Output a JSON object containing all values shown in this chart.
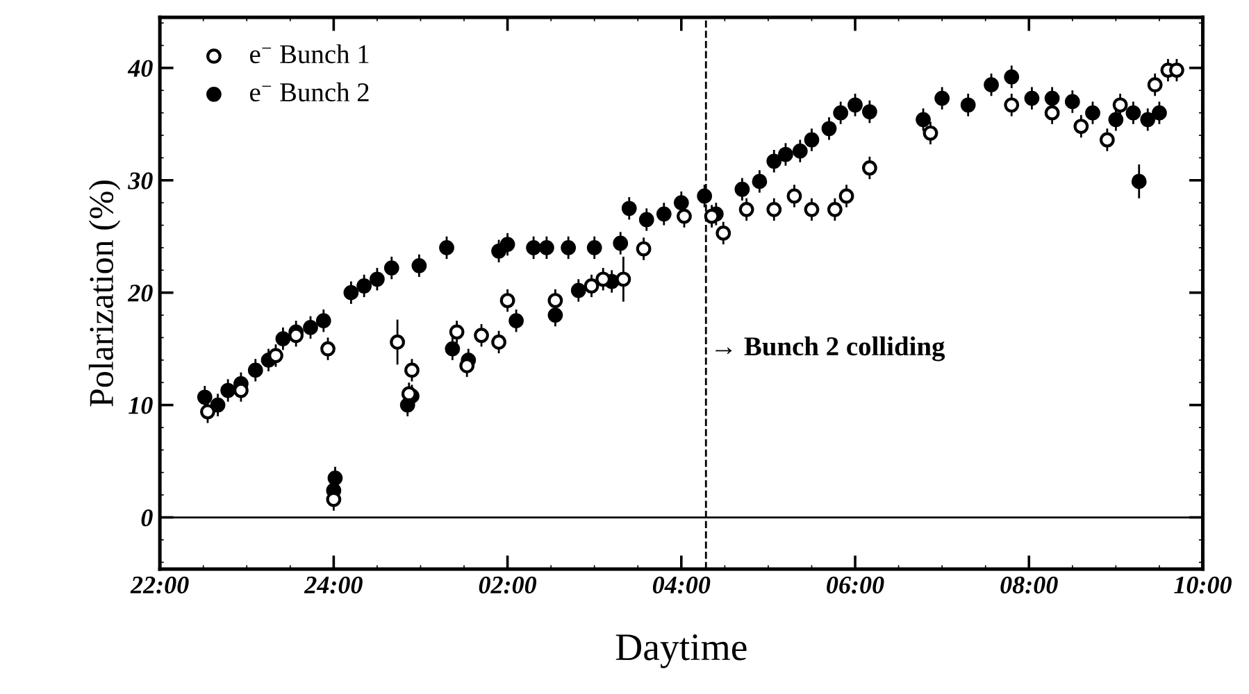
{
  "chart_data": {
    "type": "scatter",
    "xlabel": "Daytime",
    "ylabel": "Polarization (%)",
    "xlim": [
      "2000-01-01T22:00",
      "2000-01-02T10:00"
    ],
    "ylim": [
      -4.6,
      44.5
    ],
    "xticks": [
      {
        "value": "2000-01-01T22:00",
        "label": "22:00"
      },
      {
        "value": "2000-01-02T00:00",
        "label": "24:00"
      },
      {
        "value": "2000-01-02T02:00",
        "label": "02:00"
      },
      {
        "value": "2000-01-02T04:00",
        "label": "04:00"
      },
      {
        "value": "2000-01-02T06:00",
        "label": "06:00"
      },
      {
        "value": "2000-01-02T08:00",
        "label": "08:00"
      },
      {
        "value": "2000-01-02T10:00",
        "label": "10:00"
      }
    ],
    "yticks": [
      0,
      10,
      20,
      30,
      40
    ],
    "marker": "circle",
    "legend": "top left",
    "grid": false,
    "ref_lines": [
      {
        "axis": "x",
        "value": "2000-01-02T04:17",
        "label": "→ Bunch 2 colliding",
        "line_style": "dashed",
        "color": "#000000"
      },
      {
        "axis": "y",
        "value": 0,
        "label": null,
        "line_style": "solid",
        "color": "#000000"
      }
    ],
    "series": [
      {
        "name": "e$^{−}$ Bunch 1",
        "color": "#000000",
        "x": [
          "2000-01-01T22:33",
          "2000-01-01T22:56",
          "2000-01-01T23:20",
          "2000-01-01T23:34",
          "2000-01-01T23:56",
          "2000-01-02T00:00",
          "2000-01-02T00:44",
          "2000-01-02T00:54",
          "2000-01-02T00:52",
          "2000-01-02T01:25",
          "2000-01-02T01:32",
          "2000-01-02T01:42",
          "2000-01-02T01:54",
          "2000-01-02T02:00",
          "2000-01-02T02:33",
          "2000-01-02T02:58",
          "2000-01-02T03:06",
          "2000-01-02T03:20",
          "2000-01-02T03:34",
          "2000-01-02T04:02",
          "2000-01-02T04:21",
          "2000-01-02T04:29",
          "2000-01-02T04:45",
          "2000-01-02T05:04",
          "2000-01-02T05:18",
          "2000-01-02T05:30",
          "2000-01-02T05:46",
          "2000-01-02T05:54",
          "2000-01-02T06:10",
          "2000-01-02T06:52",
          "2000-01-02T07:48",
          "2000-01-02T08:16",
          "2000-01-02T08:36",
          "2000-01-02T08:54",
          "2000-01-02T09:03",
          "2000-01-02T09:27",
          "2000-01-02T09:36",
          "2000-01-02T09:42"
        ],
        "values": [
          9.4,
          11.3,
          14.4,
          16.2,
          15.0,
          1.6,
          15.6,
          13.1,
          11.0,
          16.5,
          13.5,
          16.2,
          15.6,
          19.3,
          19.3,
          20.6,
          21.2,
          21.2,
          23.9,
          26.8,
          26.8,
          25.3,
          27.4,
          27.4,
          28.6,
          27.4,
          27.4,
          28.6,
          31.1,
          34.2,
          36.7,
          36.0,
          34.8,
          33.6,
          36.7,
          38.5,
          39.8,
          39.8
        ],
        "errors": [
          1,
          1,
          1,
          1,
          1,
          1,
          2,
          1,
          1,
          1,
          1,
          1,
          1,
          1,
          1,
          1,
          1,
          2,
          1,
          1,
          1,
          1,
          1,
          1,
          1,
          1,
          1,
          1,
          1,
          1,
          1,
          1,
          1,
          1,
          1,
          1,
          1,
          1
        ]
      },
      {
        "name": "e$^{−}$ Bunch 2",
        "color": "#000000",
        "x": [
          "2000-01-01T22:31",
          "2000-01-01T22:40",
          "2000-01-01T22:47",
          "2000-01-01T22:56",
          "2000-01-01T23:06",
          "2000-01-01T23:15",
          "2000-01-01T23:25",
          "2000-01-01T23:34",
          "2000-01-01T23:44",
          "2000-01-01T23:53",
          "2000-01-02T00:00",
          "2000-01-02T00:01",
          "2000-01-02T00:12",
          "2000-01-02T00:21",
          "2000-01-02T00:30",
          "2000-01-02T00:40",
          "2000-01-02T00:51",
          "2000-01-02T00:54",
          "2000-01-02T00:59",
          "2000-01-02T01:18",
          "2000-01-02T01:22",
          "2000-01-02T01:33",
          "2000-01-02T01:54",
          "2000-01-02T02:00",
          "2000-01-02T02:06",
          "2000-01-02T02:18",
          "2000-01-02T02:27",
          "2000-01-02T02:33",
          "2000-01-02T02:42",
          "2000-01-02T02:49",
          "2000-01-02T03:00",
          "2000-01-02T03:12",
          "2000-01-02T03:18",
          "2000-01-02T03:24",
          "2000-01-02T03:36",
          "2000-01-02T03:48",
          "2000-01-02T04:00",
          "2000-01-02T04:16",
          "2000-01-02T04:24",
          "2000-01-02T04:42",
          "2000-01-02T04:54",
          "2000-01-02T05:04",
          "2000-01-02T05:12",
          "2000-01-02T05:22",
          "2000-01-02T05:30",
          "2000-01-02T05:42",
          "2000-01-02T05:50",
          "2000-01-02T06:00",
          "2000-01-02T06:10",
          "2000-01-02T06:47",
          "2000-01-02T07:00",
          "2000-01-02T07:18",
          "2000-01-02T07:34",
          "2000-01-02T07:48",
          "2000-01-02T08:02",
          "2000-01-02T08:16",
          "2000-01-02T08:30",
          "2000-01-02T08:44",
          "2000-01-02T09:00",
          "2000-01-02T09:12",
          "2000-01-02T09:16",
          "2000-01-02T09:22",
          "2000-01-02T09:30"
        ],
        "values": [
          10.7,
          10.0,
          11.3,
          11.9,
          13.1,
          14.0,
          15.9,
          16.5,
          16.9,
          17.5,
          2.4,
          3.5,
          20.0,
          20.6,
          21.2,
          22.2,
          10.0,
          10.8,
          22.4,
          24.0,
          15.0,
          14.0,
          23.7,
          24.3,
          17.5,
          24.0,
          24.0,
          18.0,
          24.0,
          20.2,
          24.0,
          21.0,
          24.4,
          27.5,
          26.5,
          27.0,
          28.0,
          28.6,
          27.0,
          29.2,
          29.9,
          31.7,
          32.3,
          32.6,
          33.6,
          34.6,
          36.0,
          36.7,
          36.1,
          35.4,
          37.3,
          36.7,
          38.5,
          39.2,
          37.3,
          37.3,
          37.0,
          36.0,
          35.4,
          36.0,
          29.9,
          35.4,
          36.0
        ],
        "errors": [
          1,
          1,
          1,
          1,
          1,
          1,
          1,
          1,
          1,
          1,
          1,
          1,
          1,
          1,
          1,
          1,
          1,
          1,
          1,
          1,
          1,
          1,
          1,
          1,
          1,
          1,
          1,
          1,
          1,
          1,
          1,
          1,
          1,
          1,
          1,
          1,
          1,
          1,
          1,
          1,
          1,
          1,
          1,
          1,
          1,
          1,
          1,
          1,
          1,
          1,
          1,
          1,
          1,
          1,
          1,
          1,
          1,
          1,
          1,
          1,
          1.5,
          1,
          1
        ]
      }
    ]
  }
}
